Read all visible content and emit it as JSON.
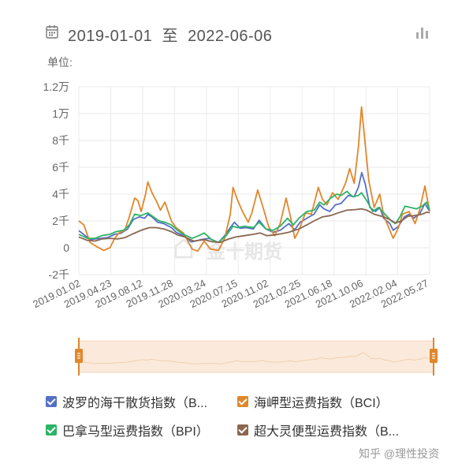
{
  "header": {
    "start_date": "2019-01-01",
    "separator": "至",
    "end_date": "2022-06-06",
    "unit_label": "单位:"
  },
  "icons": {
    "calendar": "calendar-icon",
    "chart_toggle": "bar-chart-icon"
  },
  "legend": [
    {
      "label": "波罗的海干散货指数（B...",
      "color": "#5470c6"
    },
    {
      "label": "海岬型运费指数（BCI）",
      "color": "#e0872b"
    },
    {
      "label": "巴拿马型运费指数（BPI）",
      "color": "#2cb465"
    },
    {
      "label": "超大灵便型运费指数（B...",
      "color": "#8b6650"
    }
  ],
  "watermarks": {
    "chart": "金十期货",
    "footer": "知乎 @理性投资"
  },
  "chart_data": {
    "type": "line",
    "title": "",
    "xlabel": "",
    "ylabel": "单位:",
    "x_range": [
      "2019-01-02",
      "2022-06-06"
    ],
    "x_tick_labels": [
      "2019.01.02",
      "2019.04.23",
      "2019.08.12",
      "2019.11.28",
      "2020.03.24",
      "2020.07.15",
      "2020.11.02",
      "2021.02.25",
      "2021.06.18",
      "2021.10.06",
      "2022.02.04",
      "2022.05.27"
    ],
    "y_tick_values": [
      -2000,
      0,
      2000,
      4000,
      6000,
      8000,
      10000,
      12000
    ],
    "y_tick_labels": [
      "-2千",
      "0",
      "2千",
      "4千",
      "6千",
      "8千",
      "1万",
      "1.2万"
    ],
    "ylim": [
      -2000,
      12000
    ],
    "grid": true,
    "legend_position": "bottom",
    "series": [
      {
        "name": "波罗的海干散货指数（B...",
        "color": "#5470c6",
        "points": [
          [
            "2019-01-02",
            1270
          ],
          [
            "2019-01-25",
            900
          ],
          [
            "2019-02-11",
            600
          ],
          [
            "2019-03-01",
            650
          ],
          [
            "2019-03-20",
            700
          ],
          [
            "2019-04-15",
            760
          ],
          [
            "2019-05-10",
            1000
          ],
          [
            "2019-06-01",
            1080
          ],
          [
            "2019-06-25",
            1400
          ],
          [
            "2019-07-15",
            2100
          ],
          [
            "2019-08-05",
            2300
          ],
          [
            "2019-08-25",
            2200
          ],
          [
            "2019-09-05",
            2480
          ],
          [
            "2019-09-20",
            2300
          ],
          [
            "2019-10-10",
            1900
          ],
          [
            "2019-11-01",
            1800
          ],
          [
            "2019-11-28",
            1500
          ],
          [
            "2019-12-15",
            1150
          ],
          [
            "2020-01-10",
            900
          ],
          [
            "2020-02-07",
            430
          ],
          [
            "2020-02-25",
            520
          ],
          [
            "2020-03-15",
            620
          ],
          [
            "2020-04-10",
            700
          ],
          [
            "2020-05-14",
            390
          ],
          [
            "2020-06-05",
            900
          ],
          [
            "2020-06-25",
            1500
          ],
          [
            "2020-07-10",
            1900
          ],
          [
            "2020-07-30",
            1450
          ],
          [
            "2020-08-20",
            1500
          ],
          [
            "2020-09-15",
            1400
          ],
          [
            "2020-10-06",
            2050
          ],
          [
            "2020-10-30",
            1400
          ],
          [
            "2020-11-25",
            1150
          ],
          [
            "2020-12-20",
            1300
          ],
          [
            "2021-01-20",
            1800
          ],
          [
            "2021-02-10",
            1350
          ],
          [
            "2021-03-01",
            1900
          ],
          [
            "2021-03-25",
            2200
          ],
          [
            "2021-04-20",
            2500
          ],
          [
            "2021-05-10",
            3200
          ],
          [
            "2021-05-25",
            2900
          ],
          [
            "2021-06-15",
            2700
          ],
          [
            "2021-07-05",
            3200
          ],
          [
            "2021-07-25",
            3300
          ],
          [
            "2021-08-20",
            3900
          ],
          [
            "2021-09-10",
            3800
          ],
          [
            "2021-09-25",
            4500
          ],
          [
            "2021-10-07",
            5600
          ],
          [
            "2021-10-20",
            4700
          ],
          [
            "2021-11-05",
            3000
          ],
          [
            "2021-11-25",
            2700
          ],
          [
            "2021-12-10",
            3000
          ],
          [
            "2021-12-24",
            2200
          ],
          [
            "2022-01-15",
            1800
          ],
          [
            "2022-01-27",
            1300
          ],
          [
            "2022-02-15",
            1600
          ],
          [
            "2022-03-08",
            2300
          ],
          [
            "2022-03-25",
            2500
          ],
          [
            "2022-04-10",
            2200
          ],
          [
            "2022-05-01",
            2500
          ],
          [
            "2022-05-20",
            3300
          ],
          [
            "2022-06-06",
            2700
          ]
        ]
      },
      {
        "name": "海岬型运费指数（BCI）",
        "color": "#e0872b",
        "points": [
          [
            "2019-01-02",
            2000
          ],
          [
            "2019-01-20",
            1700
          ],
          [
            "2019-02-11",
            400
          ],
          [
            "2019-03-05",
            100
          ],
          [
            "2019-04-01",
            -200
          ],
          [
            "2019-04-23",
            0
          ],
          [
            "2019-05-10",
            700
          ],
          [
            "2019-05-25",
            1100
          ],
          [
            "2019-06-15",
            1300
          ],
          [
            "2019-07-01",
            2300
          ],
          [
            "2019-07-20",
            3700
          ],
          [
            "2019-08-01",
            3500
          ],
          [
            "2019-08-12",
            2700
          ],
          [
            "2019-08-28",
            4000
          ],
          [
            "2019-09-05",
            4900
          ],
          [
            "2019-09-20",
            4100
          ],
          [
            "2019-10-05",
            3500
          ],
          [
            "2019-10-20",
            2800
          ],
          [
            "2019-11-05",
            3400
          ],
          [
            "2019-11-28",
            2000
          ],
          [
            "2019-12-15",
            1500
          ],
          [
            "2020-01-10",
            1100
          ],
          [
            "2020-02-10",
            -100
          ],
          [
            "2020-03-01",
            -250
          ],
          [
            "2020-03-24",
            500
          ],
          [
            "2020-04-15",
            -100
          ],
          [
            "2020-05-14",
            -200
          ],
          [
            "2020-06-05",
            700
          ],
          [
            "2020-06-25",
            2500
          ],
          [
            "2020-07-05",
            4500
          ],
          [
            "2020-07-20",
            3600
          ],
          [
            "2020-08-10",
            2600
          ],
          [
            "2020-08-28",
            1900
          ],
          [
            "2020-09-10",
            2600
          ],
          [
            "2020-10-01",
            4300
          ],
          [
            "2020-10-20",
            3000
          ],
          [
            "2020-11-10",
            1500
          ],
          [
            "2020-12-01",
            900
          ],
          [
            "2020-12-20",
            1800
          ],
          [
            "2021-01-10",
            3700
          ],
          [
            "2021-01-27",
            2200
          ],
          [
            "2021-02-10",
            700
          ],
          [
            "2021-02-25",
            1300
          ],
          [
            "2021-03-20",
            2600
          ],
          [
            "2021-04-10",
            2500
          ],
          [
            "2021-05-05",
            4500
          ],
          [
            "2021-05-20",
            3600
          ],
          [
            "2021-06-05",
            3200
          ],
          [
            "2021-06-25",
            4100
          ],
          [
            "2021-07-15",
            3600
          ],
          [
            "2021-08-10",
            4800
          ],
          [
            "2021-08-25",
            5900
          ],
          [
            "2021-09-10",
            4800
          ],
          [
            "2021-09-25",
            7500
          ],
          [
            "2021-10-06",
            10500
          ],
          [
            "2021-10-18",
            8000
          ],
          [
            "2021-11-01",
            5000
          ],
          [
            "2021-11-20",
            3000
          ],
          [
            "2021-12-10",
            4000
          ],
          [
            "2021-12-24",
            2400
          ],
          [
            "2022-01-15",
            1300
          ],
          [
            "2022-01-27",
            700
          ],
          [
            "2022-02-15",
            1500
          ],
          [
            "2022-03-01",
            2500
          ],
          [
            "2022-03-25",
            2700
          ],
          [
            "2022-04-15",
            1800
          ],
          [
            "2022-05-01",
            2800
          ],
          [
            "2022-05-20",
            4600
          ],
          [
            "2022-06-06",
            2700
          ]
        ]
      },
      {
        "name": "巴拿马型运费指数（BPI）",
        "color": "#2cb465",
        "points": [
          [
            "2019-01-02",
            1000
          ],
          [
            "2019-02-01",
            700
          ],
          [
            "2019-03-01",
            700
          ],
          [
            "2019-03-25",
            900
          ],
          [
            "2019-04-23",
            1000
          ],
          [
            "2019-05-15",
            1200
          ],
          [
            "2019-06-10",
            1300
          ],
          [
            "2019-07-01",
            1700
          ],
          [
            "2019-07-20",
            2500
          ],
          [
            "2019-08-12",
            2400
          ],
          [
            "2019-09-05",
            2600
          ],
          [
            "2019-09-25",
            2300
          ],
          [
            "2019-10-15",
            2000
          ],
          [
            "2019-11-05",
            1900
          ],
          [
            "2019-11-28",
            1700
          ],
          [
            "2019-12-20",
            1300
          ],
          [
            "2020-01-10",
            1000
          ],
          [
            "2020-02-10",
            700
          ],
          [
            "2020-03-05",
            900
          ],
          [
            "2020-03-24",
            1100
          ],
          [
            "2020-04-20",
            600
          ],
          [
            "2020-05-14",
            400
          ],
          [
            "2020-06-10",
            900
          ],
          [
            "2020-07-05",
            1600
          ],
          [
            "2020-07-20",
            1500
          ],
          [
            "2020-08-15",
            1600
          ],
          [
            "2020-09-15",
            1500
          ],
          [
            "2020-10-06",
            1900
          ],
          [
            "2020-10-30",
            1400
          ],
          [
            "2020-11-25",
            1300
          ],
          [
            "2020-12-20",
            1600
          ],
          [
            "2021-01-15",
            2200
          ],
          [
            "2021-02-05",
            1700
          ],
          [
            "2021-02-25",
            2200
          ],
          [
            "2021-03-25",
            2700
          ],
          [
            "2021-04-20",
            2800
          ],
          [
            "2021-05-10",
            3400
          ],
          [
            "2021-05-25",
            3200
          ],
          [
            "2021-06-18",
            3700
          ],
          [
            "2021-07-10",
            4000
          ],
          [
            "2021-07-25",
            3900
          ],
          [
            "2021-08-15",
            4200
          ],
          [
            "2021-09-05",
            3800
          ],
          [
            "2021-09-25",
            3900
          ],
          [
            "2021-10-06",
            4100
          ],
          [
            "2021-10-25",
            3500
          ],
          [
            "2021-11-15",
            2700
          ],
          [
            "2021-12-05",
            3000
          ],
          [
            "2021-12-24",
            2600
          ],
          [
            "2022-01-20",
            2000
          ],
          [
            "2022-02-04",
            1800
          ],
          [
            "2022-02-20",
            2300
          ],
          [
            "2022-03-10",
            3100
          ],
          [
            "2022-03-30",
            3000
          ],
          [
            "2022-04-20",
            2900
          ],
          [
            "2022-05-10",
            3100
          ],
          [
            "2022-05-27",
            3400
          ],
          [
            "2022-06-06",
            2800
          ]
        ]
      },
      {
        "name": "超大灵便型运费指数（B...",
        "color": "#8b6650",
        "points": [
          [
            "2019-01-02",
            800
          ],
          [
            "2019-02-01",
            550
          ],
          [
            "2019-03-01",
            500
          ],
          [
            "2019-03-25",
            650
          ],
          [
            "2019-04-23",
            700
          ],
          [
            "2019-05-20",
            650
          ],
          [
            "2019-06-15",
            750
          ],
          [
            "2019-07-10",
            1000
          ],
          [
            "2019-08-12",
            1300
          ],
          [
            "2019-09-10",
            1500
          ],
          [
            "2019-10-05",
            1500
          ],
          [
            "2019-11-01",
            1400
          ],
          [
            "2019-11-28",
            1200
          ],
          [
            "2019-12-20",
            950
          ],
          [
            "2020-01-15",
            800
          ],
          [
            "2020-02-15",
            500
          ],
          [
            "2020-03-24",
            600
          ],
          [
            "2020-04-20",
            450
          ],
          [
            "2020-05-20",
            400
          ],
          [
            "2020-06-20",
            650
          ],
          [
            "2020-07-15",
            800
          ],
          [
            "2020-08-15",
            900
          ],
          [
            "2020-09-15",
            1000
          ],
          [
            "2020-10-10",
            1100
          ],
          [
            "2020-11-02",
            900
          ],
          [
            "2020-12-01",
            950
          ],
          [
            "2020-12-25",
            1050
          ],
          [
            "2021-01-20",
            1150
          ],
          [
            "2021-02-25",
            1400
          ],
          [
            "2021-03-25",
            1700
          ],
          [
            "2021-04-20",
            2000
          ],
          [
            "2021-05-20",
            2300
          ],
          [
            "2021-06-18",
            2400
          ],
          [
            "2021-07-15",
            2600
          ],
          [
            "2021-08-15",
            2800
          ],
          [
            "2021-09-15",
            2850
          ],
          [
            "2021-10-06",
            2900
          ],
          [
            "2021-10-25",
            2800
          ],
          [
            "2021-11-20",
            2500
          ],
          [
            "2021-12-24",
            2300
          ],
          [
            "2022-01-15",
            2100
          ],
          [
            "2022-02-04",
            1850
          ],
          [
            "2022-02-25",
            2000
          ],
          [
            "2022-03-20",
            2350
          ],
          [
            "2022-04-15",
            2400
          ],
          [
            "2022-05-10",
            2500
          ],
          [
            "2022-05-27",
            2650
          ],
          [
            "2022-06-06",
            2600
          ]
        ]
      }
    ]
  }
}
